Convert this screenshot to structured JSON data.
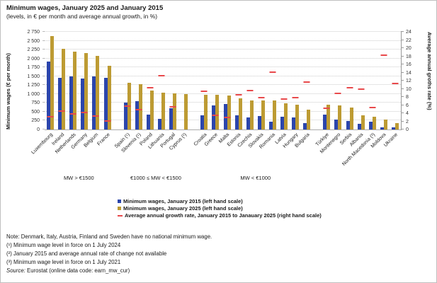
{
  "header": {
    "title": "Minimum wages, January 2025 and January 2015",
    "subtitle": "(levels, in € per month and average annual growth, in %)"
  },
  "chart_data": {
    "type": "bar",
    "title": "Minimum wages, January 2025 and January 2015",
    "subtitle": "(levels, in € per month and average annual growth, in %)",
    "left_axis": {
      "label": "Minimum wages (€ per month)",
      "min": 0,
      "max": 2750,
      "step": 250
    },
    "right_axis": {
      "label": "Average annual groths rate (%)",
      "min": 0,
      "max": 24,
      "step": 2
    },
    "colors": {
      "mw_2015": "#2b45ac",
      "mw_2025": "#bd9b33",
      "growth": "#e8494b"
    },
    "series_names": [
      "Minimum wages, January 2015",
      "Minimum wages, January 2025",
      "Average annual growth rate 2015-2025 (%)"
    ],
    "groups": [
      {
        "label": "MW > €1500",
        "countries": [
          {
            "name": "Luxembourg",
            "mw_2015": 1923,
            "mw_2025": 2638,
            "growth": 3.2
          },
          {
            "name": "Ireland",
            "mw_2015": 1462,
            "mw_2025": 2282,
            "growth": 4.6
          },
          {
            "name": "Netherlands",
            "mw_2015": 1502,
            "mw_2025": 2193,
            "growth": 3.9
          },
          {
            "name": "Germany",
            "mw_2015": 1440,
            "mw_2025": 2161,
            "growth": 4.1
          },
          {
            "name": "Belgium",
            "mw_2015": 1502,
            "mw_2025": 2070,
            "growth": 3.3
          },
          {
            "name": "France",
            "mw_2015": 1458,
            "mw_2025": 1802,
            "growth": 2.1
          }
        ]
      },
      {
        "label": "€1000 ≤ MW < €1500",
        "countries": [
          {
            "name": "Spain (¹)",
            "mw_2015": 757,
            "mw_2025": 1323,
            "growth": 5.7
          },
          {
            "name": "Slovenia (¹)",
            "mw_2015": 791,
            "mw_2025": 1278,
            "growth": 4.9
          },
          {
            "name": "Poland",
            "mw_2015": 410,
            "mw_2025": 1091,
            "growth": 10.3
          },
          {
            "name": "Lithuania",
            "mw_2015": 300,
            "mw_2025": 1038,
            "growth": 13.2
          },
          {
            "name": "Portugal",
            "mw_2015": 589,
            "mw_2025": 1015,
            "growth": 5.6
          },
          {
            "name": "Cyprus (²)",
            "mw_2015": null,
            "mw_2025": 1000,
            "growth": null
          }
        ]
      },
      {
        "label": "MW < €1000",
        "countries": [
          {
            "name": "Croatia",
            "mw_2015": 396,
            "mw_2025": 970,
            "growth": 9.4
          },
          {
            "name": "Greece",
            "mw_2015": 684,
            "mw_2025": 968,
            "growth": 3.5
          },
          {
            "name": "Malta",
            "mw_2015": 720,
            "mw_2025": 961,
            "growth": 2.9
          },
          {
            "name": "Estonia",
            "mw_2015": 390,
            "mw_2025": 886,
            "growth": 8.6
          },
          {
            "name": "Czechia",
            "mw_2015": 332,
            "mw_2025": 826,
            "growth": 9.5
          },
          {
            "name": "Slovakia",
            "mw_2015": 380,
            "mw_2025": 816,
            "growth": 7.9
          },
          {
            "name": "Romania",
            "mw_2015": 218,
            "mw_2025": 814,
            "growth": 14.1
          },
          {
            "name": "Latvia",
            "mw_2015": 360,
            "mw_2025": 740,
            "growth": 7.5
          },
          {
            "name": "Hungary",
            "mw_2015": 333,
            "mw_2025": 707,
            "growth": 7.8
          },
          {
            "name": "Bulgaria",
            "mw_2015": 184,
            "mw_2025": 551,
            "growth": 11.6
          }
        ]
      },
      {
        "label": "",
        "countries": [
          {
            "name": "Türkiye",
            "mw_2015": 424,
            "mw_2025": 708,
            "growth": 5.3
          },
          {
            "name": "Montenegro",
            "mw_2015": 288,
            "mw_2025": 670,
            "growth": 8.8
          },
          {
            "name": "Serbia",
            "mw_2015": 235,
            "mw_2025": 619,
            "growth": 10.2
          },
          {
            "name": "Albania",
            "mw_2015": 157,
            "mw_2025": 408,
            "growth": 10.0
          },
          {
            "name": "North Macedonia (³)",
            "mw_2015": 213,
            "mw_2025": 360,
            "growth": 5.4
          },
          {
            "name": "Moldova",
            "mw_2015": 53,
            "mw_2025": 285,
            "growth": 18.3
          },
          {
            "name": "Ukraine",
            "mw_2015": 63,
            "mw_2025": 184,
            "growth": 11.3
          }
        ]
      }
    ]
  },
  "legend": [
    {
      "swatch": "square",
      "color_key": "mw_2015",
      "label": "Minimum wages, January 2015 (left hand scale)"
    },
    {
      "swatch": "square",
      "color_key": "mw_2025",
      "label": "Minimum wages, January 2025 (left hand scale)"
    },
    {
      "swatch": "dash",
      "color_key": "growth",
      "label": "Average annual growth rate, January 2015 to Janauary 2025 (right hand scale)"
    }
  ],
  "notes": {
    "lines": [
      "Note: Denmark, Italy, Austria, Finland and Sweden have no national minimum wage.",
      "(¹) Minimum wage level in force on 1 July 2024",
      "(²) January 2015 and average annual rate of change not available",
      "(³) Minimum wage level in force on 1 July 2021"
    ],
    "source_label": "Source:",
    "source_text": " Eurostat (online data code: earn_mw_cur)"
  }
}
